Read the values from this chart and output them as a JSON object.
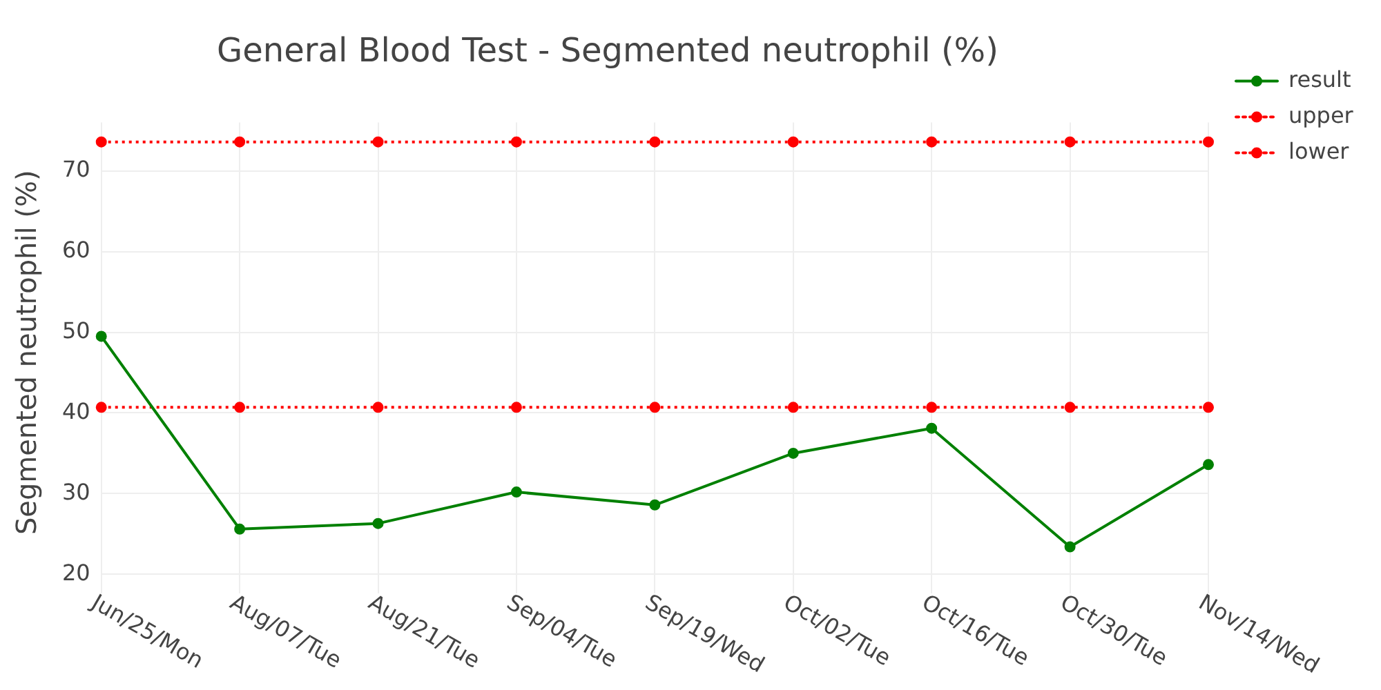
{
  "chart_data": {
    "type": "line",
    "title": "General Blood Test - Segmented neutrophil (%)",
    "ylabel": "Segmented neutrophil (%)",
    "categories": [
      "Jun/25/Mon",
      "Aug/07/Tue",
      "Aug/21/Tue",
      "Sep/04/Tue",
      "Sep/19/Wed",
      "Oct/02/Tue",
      "Oct/16/Tue",
      "Oct/30/Tue",
      "Nov/14/Wed"
    ],
    "series": [
      {
        "name": "result",
        "color": "#008000",
        "line_style": "solid",
        "values": [
          49.5,
          25.6,
          26.3,
          30.2,
          28.6,
          35.0,
          38.1,
          23.4,
          33.6
        ]
      },
      {
        "name": "upper",
        "color": "#ff0000",
        "line_style": "dotted",
        "values": [
          73.6,
          73.6,
          73.6,
          73.6,
          73.6,
          73.6,
          73.6,
          73.6,
          73.6
        ]
      },
      {
        "name": "lower",
        "color": "#ff0000",
        "line_style": "dotted",
        "values": [
          40.7,
          40.7,
          40.7,
          40.7,
          40.7,
          40.7,
          40.7,
          40.7,
          40.7
        ]
      }
    ],
    "ylim": [
      19,
      76
    ],
    "yticks": [
      20,
      30,
      40,
      50,
      60,
      70
    ],
    "grid": true,
    "legend": "top right",
    "marker": "circle"
  }
}
